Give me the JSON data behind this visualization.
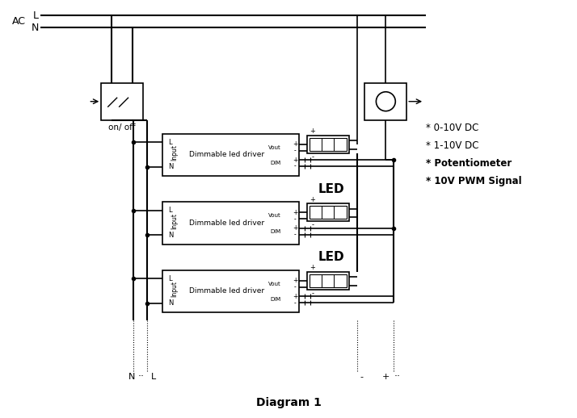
{
  "title": "Diagram 1",
  "bg_color": "#ffffff",
  "figsize": [
    7.14,
    5.18
  ],
  "dpi": 100,
  "ac_label": "AC",
  "l_label": "L",
  "n_label": "N",
  "on_off_label": "on/ off",
  "driver_label": "Dimmable led driver",
  "led_label": "LED",
  "right_labels": [
    "* 0-10V DC",
    "* 1-10V DC",
    "* Potentiometer",
    "* 10V PWM Signal"
  ],
  "vout_label": "Vout",
  "dim_label": "DIM"
}
